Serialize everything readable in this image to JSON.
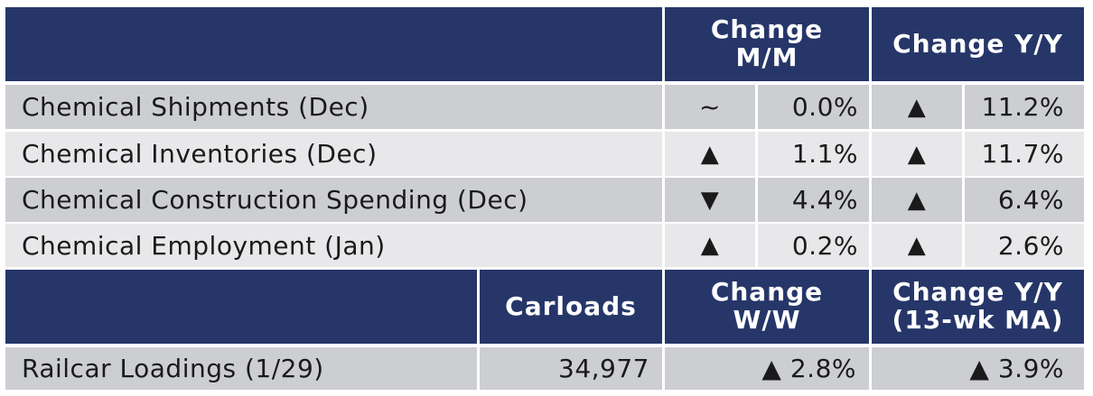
{
  "header1": {
    "blank": "",
    "change_mm": "Change M/M",
    "change_yy": "Change Y/Y"
  },
  "rows": [
    {
      "label": "Chemical Shipments (Dec)",
      "mm_sym": "~",
      "mm_val": "0.0%",
      "yy_sym": "▲",
      "yy_val": "11.2%"
    },
    {
      "label": "Chemical Inventories (Dec)",
      "mm_sym": "▲",
      "mm_val": "1.1%",
      "yy_sym": "▲",
      "yy_val": "11.7%"
    },
    {
      "label": "Chemical Construction Spending (Dec)",
      "mm_sym": "▼",
      "mm_val": "4.4%",
      "yy_sym": "▲",
      "yy_val": "6.4%"
    },
    {
      "label": "Chemical Employment (Jan)",
      "mm_sym": "▲",
      "mm_val": "0.2%",
      "yy_sym": "▲",
      "yy_val": "2.6%"
    }
  ],
  "header2": {
    "blank": "",
    "carloads": "Carloads",
    "change_ww": "Change W/W",
    "change_yy_ma": "Change Y/Y (13-wk MA)"
  },
  "railcar": {
    "label": "Railcar Loadings (1/29)",
    "carloads": "34,977",
    "ww": "▲ 2.8%",
    "yy": "▲ 3.9%"
  },
  "colors": {
    "header_bg": "#263669",
    "row_dark": "#cdced2",
    "row_light": "#e8e8ea"
  }
}
